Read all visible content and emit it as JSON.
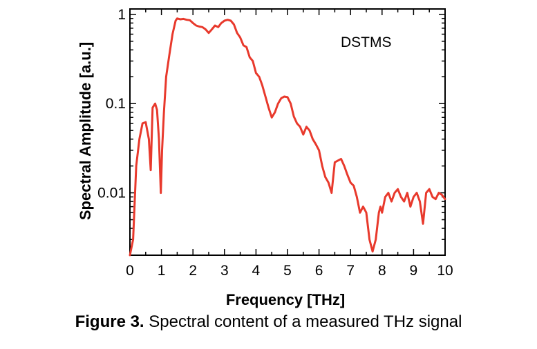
{
  "chart_data": {
    "type": "line",
    "title": "",
    "xlabel": "Frequency [THz]",
    "ylabel": "Spectral Amplitude [a.u.]",
    "xlim": [
      0,
      10
    ],
    "ylim": [
      0.002,
      1.15
    ],
    "yscale": "log",
    "grid": false,
    "legend": "none",
    "x_ticks": [
      0,
      1,
      2,
      3,
      4,
      5,
      6,
      7,
      8,
      9,
      10
    ],
    "x_tick_labels": [
      "0",
      "1",
      "2",
      "3",
      "4",
      "5",
      "6",
      "7",
      "8",
      "9",
      "10"
    ],
    "y_ticks": [
      0.01,
      0.1,
      1
    ],
    "y_tick_labels": [
      "0.01",
      "0.1",
      "1"
    ],
    "annotations": [
      {
        "text": "DSTMS"
      }
    ],
    "series": [
      {
        "color": "#e8392c",
        "x": [
          0.0,
          0.1,
          0.2,
          0.3,
          0.4,
          0.5,
          0.6,
          0.66,
          0.72,
          0.8,
          0.86,
          0.92,
          0.98,
          1.02,
          1.08,
          1.15,
          1.25,
          1.35,
          1.45,
          1.5,
          1.6,
          1.7,
          1.8,
          1.9,
          2.0,
          2.1,
          2.2,
          2.3,
          2.4,
          2.5,
          2.6,
          2.7,
          2.8,
          2.9,
          3.0,
          3.1,
          3.2,
          3.3,
          3.4,
          3.5,
          3.6,
          3.7,
          3.8,
          3.9,
          4.0,
          4.1,
          4.2,
          4.3,
          4.4,
          4.5,
          4.6,
          4.7,
          4.8,
          4.9,
          5.0,
          5.1,
          5.2,
          5.3,
          5.4,
          5.5,
          5.6,
          5.7,
          5.8,
          5.9,
          6.0,
          6.1,
          6.2,
          6.3,
          6.4,
          6.5,
          6.6,
          6.7,
          6.8,
          6.9,
          7.0,
          7.1,
          7.2,
          7.3,
          7.4,
          7.5,
          7.6,
          7.7,
          7.8,
          7.9,
          7.95,
          8.0,
          8.1,
          8.2,
          8.3,
          8.4,
          8.5,
          8.6,
          8.7,
          8.8,
          8.9,
          9.0,
          9.1,
          9.2,
          9.3,
          9.4,
          9.5,
          9.6,
          9.7,
          9.8,
          9.9,
          10.0
        ],
        "y": [
          0.002,
          0.003,
          0.02,
          0.04,
          0.06,
          0.062,
          0.04,
          0.018,
          0.09,
          0.1,
          0.085,
          0.04,
          0.01,
          0.03,
          0.08,
          0.2,
          0.35,
          0.6,
          0.85,
          0.9,
          0.88,
          0.89,
          0.87,
          0.86,
          0.8,
          0.75,
          0.73,
          0.72,
          0.68,
          0.62,
          0.68,
          0.75,
          0.72,
          0.8,
          0.85,
          0.87,
          0.85,
          0.77,
          0.62,
          0.55,
          0.45,
          0.43,
          0.33,
          0.3,
          0.22,
          0.2,
          0.16,
          0.12,
          0.09,
          0.07,
          0.08,
          0.1,
          0.115,
          0.12,
          0.118,
          0.1,
          0.072,
          0.06,
          0.055,
          0.045,
          0.055,
          0.05,
          0.04,
          0.035,
          0.03,
          0.02,
          0.015,
          0.013,
          0.01,
          0.022,
          0.023,
          0.024,
          0.02,
          0.016,
          0.013,
          0.012,
          0.009,
          0.006,
          0.007,
          0.006,
          0.003,
          0.0022,
          0.003,
          0.006,
          0.007,
          0.006,
          0.009,
          0.01,
          0.008,
          0.01,
          0.011,
          0.009,
          0.008,
          0.01,
          0.007,
          0.009,
          0.01,
          0.008,
          0.0045,
          0.01,
          0.011,
          0.009,
          0.0085,
          0.01,
          0.0095,
          0.0085
        ]
      }
    ]
  },
  "caption": {
    "label": "Figure 3.",
    "text": " Spectral content of a measured THz signal"
  }
}
